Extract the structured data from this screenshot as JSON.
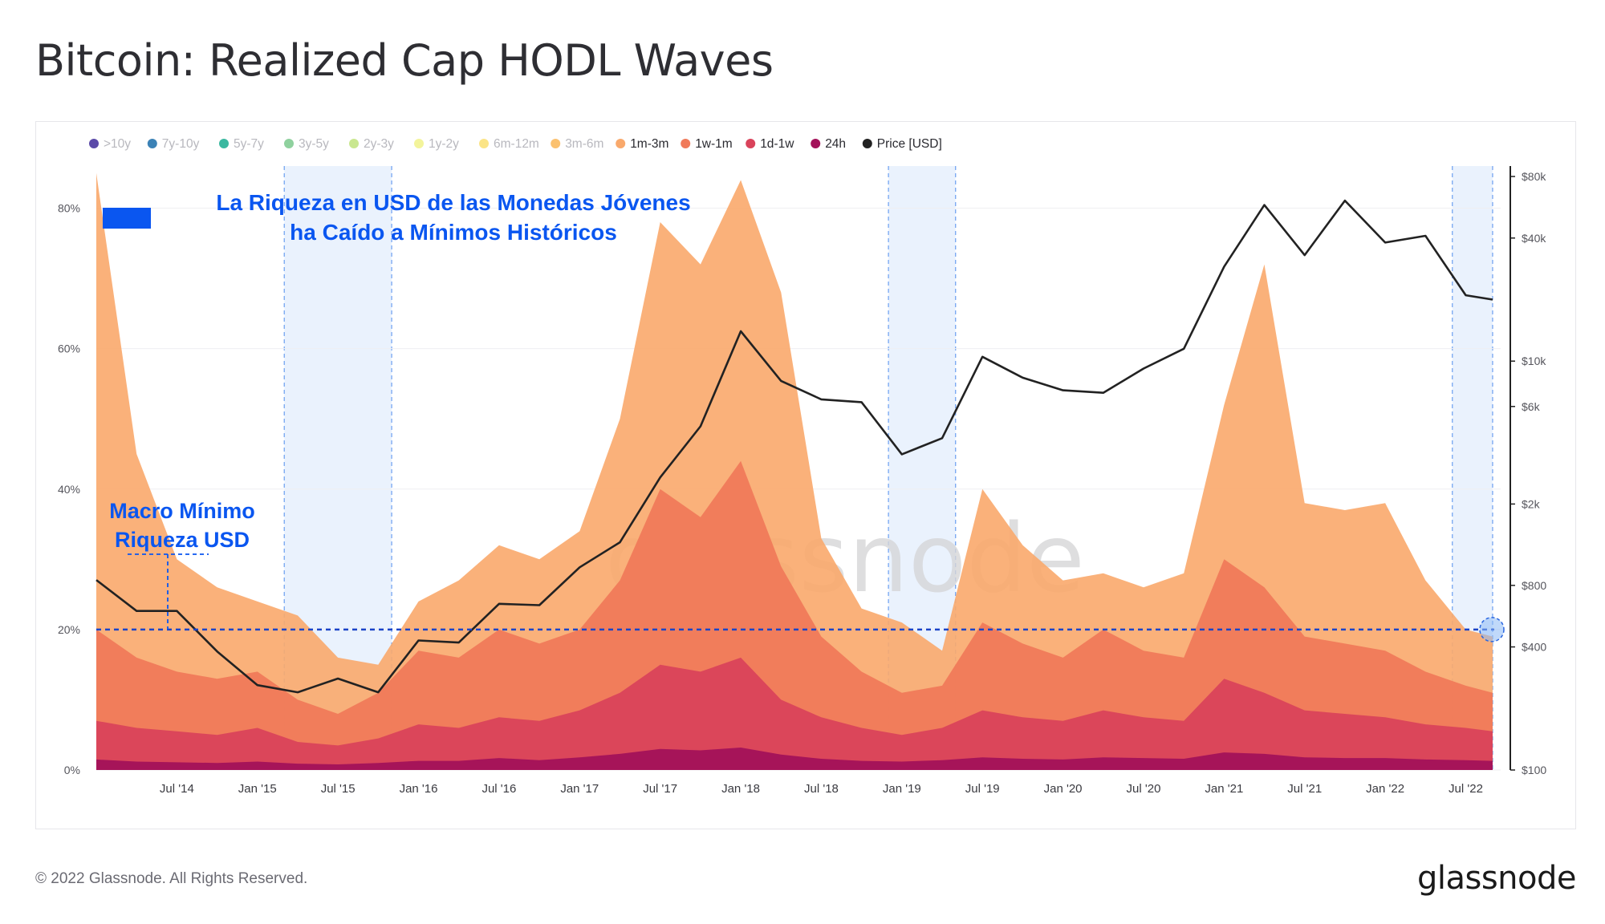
{
  "title": "Bitcoin: Realized Cap HODL Waves",
  "footer": "© 2022 Glassnode. All Rights Reserved.",
  "brand": "glassnode",
  "watermark": "glassnode",
  "chart_data": {
    "type": "area",
    "title": "Bitcoin: Realized Cap HODL Waves",
    "legend_position": "top-left",
    "legend": [
      {
        "name": ">10y",
        "color": "#5b4aa8",
        "active": false
      },
      {
        "name": "7y-10y",
        "color": "#3b82b6",
        "active": false
      },
      {
        "name": "5y-7y",
        "color": "#3bb8a0",
        "active": false
      },
      {
        "name": "3y-5y",
        "color": "#8fd19e",
        "active": false
      },
      {
        "name": "2y-3y",
        "color": "#c9e78f",
        "active": false
      },
      {
        "name": "1y-2y",
        "color": "#f3f49b",
        "active": false
      },
      {
        "name": "6m-12m",
        "color": "#fbe486",
        "active": false
      },
      {
        "name": "3m-6m",
        "color": "#fbc16f",
        "active": false
      },
      {
        "name": "1m-3m",
        "color": "#f9a96c",
        "active": true
      },
      {
        "name": "1w-1m",
        "color": "#f07a5a",
        "active": true
      },
      {
        "name": "1d-1w",
        "color": "#d9435b",
        "active": true
      },
      {
        "name": "24h",
        "color": "#a3125a",
        "active": true
      },
      {
        "name": "Price [USD]",
        "color": "#222222",
        "active": true
      }
    ],
    "x_ticks": [
      "Jul '14",
      "Jan '15",
      "Jul '15",
      "Jan '16",
      "Jul '16",
      "Jan '17",
      "Jul '17",
      "Jan '18",
      "Jul '18",
      "Jan '19",
      "Jul '19",
      "Jan '20",
      "Jul '20",
      "Jan '21",
      "Jul '21",
      "Jan '22",
      "Jul '22"
    ],
    "x_range": [
      "2014-01",
      "2022-09"
    ],
    "y_left": {
      "ticks": [
        "0%",
        "20%",
        "40%",
        "60%",
        "80%"
      ],
      "range": [
        0,
        86
      ]
    },
    "y_right": {
      "scale": "log",
      "ticks": [
        "$100",
        "$400",
        "$800",
        "$2k",
        "$6k",
        "$10k",
        "$40k",
        "$80k"
      ],
      "range": [
        100,
        90000
      ]
    },
    "x": [
      "2014-01",
      "2014-04",
      "2014-07",
      "2014-10",
      "2015-01",
      "2015-04",
      "2015-07",
      "2015-10",
      "2016-01",
      "2016-04",
      "2016-07",
      "2016-10",
      "2017-01",
      "2017-04",
      "2017-07",
      "2017-10",
      "2018-01",
      "2018-04",
      "2018-07",
      "2018-10",
      "2019-01",
      "2019-04",
      "2019-07",
      "2019-10",
      "2020-01",
      "2020-04",
      "2020-07",
      "2020-10",
      "2021-01",
      "2021-04",
      "2021-07",
      "2021-10",
      "2022-01",
      "2022-04",
      "2022-07",
      "2022-09"
    ],
    "series": [
      {
        "name": "24h",
        "values": [
          1.5,
          1.2,
          1.1,
          1.0,
          1.2,
          0.9,
          0.8,
          1.0,
          1.3,
          1.3,
          1.7,
          1.4,
          1.8,
          2.3,
          3.0,
          2.8,
          3.2,
          2.2,
          1.6,
          1.3,
          1.2,
          1.4,
          1.8,
          1.6,
          1.5,
          1.8,
          1.7,
          1.6,
          2.5,
          2.3,
          1.8,
          1.7,
          1.7,
          1.5,
          1.4,
          1.3
        ]
      },
      {
        "name": "1d-1w",
        "values": [
          7,
          6,
          5.5,
          5,
          6,
          4,
          3.5,
          4.5,
          6.5,
          6,
          7.5,
          7,
          8.5,
          11,
          15,
          14,
          16,
          10,
          7.5,
          6,
          5,
          6,
          8.5,
          7.5,
          7,
          8.5,
          7.5,
          7,
          13,
          11,
          8.5,
          8,
          7.5,
          6.5,
          6,
          5.5
        ]
      },
      {
        "name": "1w-1m",
        "values": [
          20,
          16,
          14,
          13,
          14,
          10,
          8,
          11,
          17,
          16,
          20,
          18,
          20,
          27,
          40,
          36,
          44,
          29,
          19,
          14,
          11,
          12,
          21,
          18,
          16,
          20,
          17,
          16,
          30,
          26,
          19,
          18,
          17,
          14,
          12,
          11
        ]
      },
      {
        "name": "1m-3m",
        "values": [
          85,
          45,
          30,
          26,
          24,
          22,
          16,
          15,
          24,
          27,
          32,
          30,
          34,
          50,
          78,
          72,
          84,
          68,
          33,
          23,
          21,
          17,
          40,
          32,
          27,
          28,
          26,
          28,
          52,
          72,
          38,
          37,
          38,
          27,
          20,
          19
        ]
      },
      {
        "name": "Price [USD]",
        "values": [
          850,
          600,
          600,
          380,
          260,
          240,
          280,
          240,
          430,
          420,
          650,
          640,
          980,
          1300,
          2700,
          4800,
          14000,
          8000,
          6500,
          6300,
          3500,
          4200,
          10500,
          8300,
          7200,
          7000,
          9200,
          11500,
          29000,
          58000,
          33000,
          61000,
          38000,
          41000,
          21000,
          20000
        ]
      }
    ],
    "highlight_periods": [
      {
        "start": "2015-03",
        "end": "2015-11"
      },
      {
        "start": "2018-12",
        "end": "2019-05"
      },
      {
        "start": "2022-06",
        "end": "2022-09"
      }
    ],
    "annotations": [
      {
        "text": "La Riqueza en USD de las Monedas Jóvenes",
        "text2": "ha Caído a Mínimos Históricos",
        "color": "#0a56f0"
      },
      {
        "text": "Macro Mínimo",
        "text2": "Riqueza USD",
        "color": "#0a56f0"
      }
    ],
    "reference_line": {
      "value": 20,
      "unit": "%",
      "style": "dashed",
      "color": "#1a44c8"
    }
  }
}
